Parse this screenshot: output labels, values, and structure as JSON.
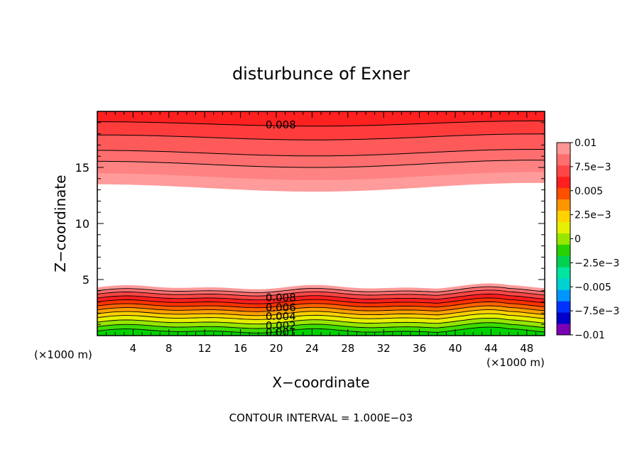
{
  "chart_data": {
    "type": "contour",
    "title": "disturbunce of Exner",
    "xlabel": "X−coordinate",
    "ylabel": "Z−coordinate",
    "x_unit_left": "(×1000 m)",
    "x_unit_right": "(×1000 m)",
    "xlim": [
      0,
      50
    ],
    "ylim": [
      0,
      20
    ],
    "x_ticks": [
      4,
      8,
      12,
      16,
      20,
      24,
      28,
      32,
      36,
      40,
      44,
      48
    ],
    "y_ticks": [
      5,
      10,
      15
    ],
    "contour_interval_text": "CONTOUR INTERVAL = 1.000E−03",
    "contour_labels": [
      {
        "text": "0.008",
        "x": 20.5,
        "z": 18.8
      },
      {
        "text": "0.008",
        "x": 20.5,
        "z": 3.4
      },
      {
        "text": "0.006",
        "x": 20.5,
        "z": 2.5
      },
      {
        "text": "0.004",
        "x": 20.5,
        "z": 1.7
      },
      {
        "text": "0.002",
        "x": 20.5,
        "z": 0.9
      },
      {
        "text": "0.001",
        "x": 20.5,
        "z": 0.3
      }
    ],
    "colorbar": {
      "ticks": [
        "0.01",
        "7.5e−3",
        "0.005",
        "2.5e−3",
        "0",
        "−2.5e−3",
        "−0.005",
        "−7.5e−3",
        "−0.01"
      ],
      "colors_bottom_to_top": [
        "#7a00b4",
        "#0000c8",
        "#0032ff",
        "#0096ff",
        "#00d2d2",
        "#00e6a0",
        "#00d250",
        "#28d200",
        "#96e600",
        "#e6f000",
        "#ffd200",
        "#ff9600",
        "#ff5000",
        "#ff1e1e",
        "#ff4646",
        "#ff6e6e",
        "#ff9696"
      ]
    },
    "upper_bands": {
      "colors_bottom_to_top": [
        "#ff9b9b",
        "#ff8282",
        "#ff6e6e",
        "#ff5a5a",
        "#ff3c3c",
        "#ff2020"
      ],
      "z_base": [
        13.2,
        14.2,
        15.3,
        16.3,
        17.7,
        18.9
      ]
    },
    "lower_bands": {
      "colors_bottom_to_top": [
        "#00d200",
        "#3cdc00",
        "#96e600",
        "#e6f000",
        "#ffd200",
        "#ffa000",
        "#ff6400",
        "#ff3200",
        "#ff1e1e",
        "#ff4646",
        "#ff6e6e",
        "#ff9b9b"
      ],
      "z_tops": [
        0.4,
        0.8,
        1.2,
        1.6,
        1.95,
        2.3,
        2.65,
        3.0,
        3.35,
        3.7,
        4.0,
        4.3
      ]
    }
  }
}
